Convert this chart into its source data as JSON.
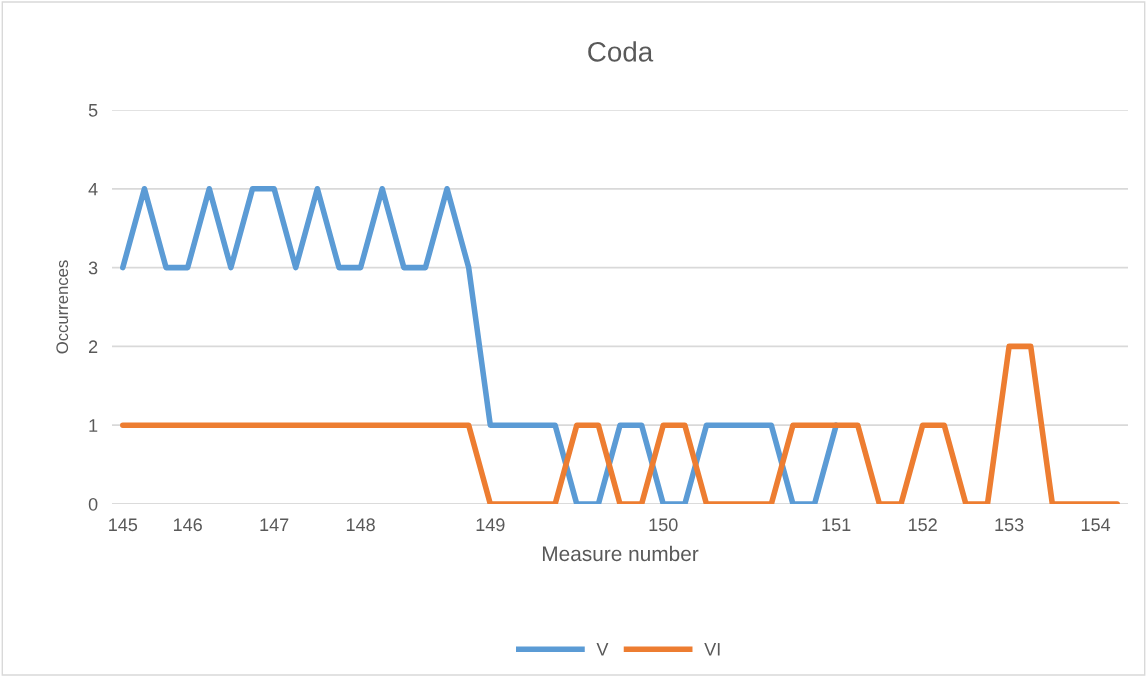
{
  "chart_data": {
    "type": "line",
    "title": "Coda",
    "xlabel": "Measure number",
    "ylabel": "Occurrences",
    "categories": [
      "145",
      null,
      null,
      "146",
      null,
      null,
      null,
      "147",
      null,
      null,
      null,
      "148",
      null,
      null,
      null,
      null,
      null,
      "149",
      null,
      null,
      null,
      null,
      null,
      null,
      null,
      "150",
      null,
      null,
      null,
      null,
      null,
      null,
      null,
      "151",
      null,
      null,
      null,
      "152",
      null,
      null,
      null,
      "153",
      null,
      null,
      null,
      "154",
      null
    ],
    "series": [
      {
        "name": "V",
        "color": "#5b9bd5",
        "values": [
          3,
          4,
          3,
          3,
          4,
          3,
          4,
          4,
          3,
          4,
          3,
          3,
          4,
          3,
          3,
          4,
          3,
          1,
          1,
          1,
          1,
          0,
          0,
          1,
          1,
          0,
          0,
          1,
          1,
          1,
          1,
          0,
          0,
          1,
          null,
          null,
          null,
          null,
          null,
          null,
          null,
          null,
          null,
          null,
          null,
          null,
          null
        ]
      },
      {
        "name": "VI",
        "color": "#ed7d31",
        "values": [
          1,
          1,
          1,
          1,
          1,
          1,
          1,
          1,
          1,
          1,
          1,
          1,
          1,
          1,
          1,
          1,
          1,
          0,
          0,
          0,
          0,
          1,
          1,
          0,
          0,
          1,
          1,
          0,
          0,
          0,
          0,
          1,
          1,
          1,
          1,
          0,
          0,
          1,
          1,
          0,
          0,
          2,
          2,
          0,
          0,
          0,
          0
        ]
      }
    ],
    "ylim": [
      0,
      5
    ],
    "yticks": [
      0,
      1,
      2,
      3,
      4,
      5
    ],
    "grid": "y",
    "legend": "bottom",
    "marker": "none",
    "line_style": "solid"
  }
}
